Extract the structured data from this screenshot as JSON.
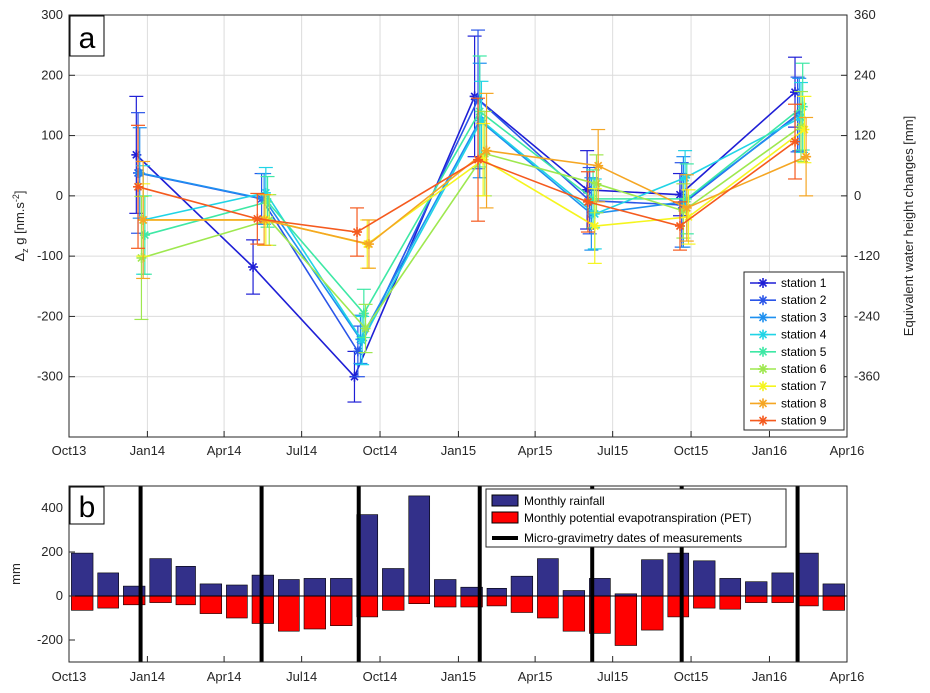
{
  "chart_data": [
    {
      "panel": "a",
      "type": "line",
      "ylabel": "Δz g [nm.s-2]",
      "ylabel_main": "Δ",
      "ylabel_sub": "z",
      "ylabel_rest": " g [nm.s",
      "ylabel_sup": "-2",
      "ylabel_end": "]",
      "y2label": "Equivalent water height  changes [mm]",
      "ylim": [
        -400,
        300
      ],
      "yticks": [
        "300",
        "200",
        "100",
        "0",
        "-100",
        "-200",
        "-300"
      ],
      "y2ticks": [
        "360",
        "240",
        "120",
        "0",
        "-120",
        "-240",
        "-360"
      ],
      "xticks": [
        "Oct13",
        "Jan14",
        "Apr14",
        "Jul14",
        "Oct14",
        "Jan15",
        "Apr15",
        "Jul15",
        "Oct15",
        "Jan16",
        "Apr16"
      ],
      "grid": true,
      "legend_position": "bottom-right",
      "series": [
        {
          "name": "station 1",
          "color": "#1f1fd6",
          "x": [
            "2013-12-19",
            "2014-05-05",
            "2014-09-01",
            "2015-01-20",
            "2015-06-01",
            "2015-09-18",
            "2016-01-31"
          ],
          "values": [
            68,
            -118,
            -300,
            165,
            10,
            2,
            172
          ],
          "err": [
            97,
            45,
            42,
            100,
            65,
            35,
            58
          ]
        },
        {
          "name": "station 2",
          "color": "#2a55e8",
          "x": [
            "2013-12-21",
            "2014-05-15",
            "2014-09-05",
            "2015-01-24",
            "2015-06-04",
            "2015-09-20",
            "2016-02-03"
          ],
          "values": [
            38,
            -5,
            -258,
            160,
            -8,
            -15,
            135
          ],
          "err": [
            100,
            42,
            42,
            115,
            55,
            70,
            62
          ]
        },
        {
          "name": "station 3",
          "color": "#1e90f0",
          "x": [
            "2013-12-23",
            "2014-05-18",
            "2014-09-08",
            "2015-01-26",
            "2015-06-06",
            "2015-09-22",
            "2016-02-05"
          ],
          "values": [
            38,
            -5,
            -238,
            125,
            -30,
            -10,
            135
          ],
          "err": [
            75,
            42,
            40,
            95,
            60,
            75,
            60
          ]
        },
        {
          "name": "station 4",
          "color": "#20d4e6",
          "x": [
            "2013-12-27",
            "2014-05-20",
            "2014-09-10",
            "2015-01-28",
            "2015-06-10",
            "2015-09-24",
            "2016-02-07"
          ],
          "values": [
            -40,
            5,
            -240,
            125,
            -30,
            30,
            130
          ],
          "err": [
            90,
            42,
            40,
            65,
            58,
            45,
            58
          ]
        },
        {
          "name": "station 5",
          "color": "#3ee8a5",
          "x": [
            "2013-12-29",
            "2014-05-22",
            "2014-09-12",
            "2015-01-26",
            "2015-06-08",
            "2015-09-26",
            "2016-02-09"
          ],
          "values": [
            -65,
            -10,
            -195,
            140,
            -5,
            -5,
            148
          ],
          "err": [
            65,
            42,
            40,
            92,
            48,
            58,
            72
          ]
        },
        {
          "name": "station 6",
          "color": "#9ee84f",
          "x": [
            "2013-12-25",
            "2014-05-24",
            "2014-09-14",
            "2015-02-01",
            "2015-06-12",
            "2015-09-22",
            "2016-02-07"
          ],
          "values": [
            -103,
            -40,
            -220,
            70,
            20,
            -25,
            115
          ],
          "err": [
            102,
            42,
            40,
            70,
            48,
            45,
            58
          ]
        },
        {
          "name": "station 7",
          "color": "#f5f51e",
          "x": [
            "2013-12-27",
            "2014-05-20",
            "2014-09-16",
            "2015-01-30",
            "2015-06-10",
            "2015-09-28",
            "2016-02-11"
          ],
          "values": [
            -40,
            -40,
            -80,
            60,
            -50,
            -35,
            110
          ],
          "err": [
            60,
            42,
            40,
            60,
            62,
            45,
            55
          ]
        },
        {
          "name": "station 8",
          "color": "#f5a623",
          "x": [
            "2013-12-27",
            "2014-05-18",
            "2014-09-18",
            "2015-02-03",
            "2015-06-14",
            "2015-09-26",
            "2016-02-13"
          ],
          "values": [
            -40,
            -40,
            -80,
            75,
            50,
            -20,
            65
          ],
          "err": [
            97,
            42,
            40,
            95,
            60,
            55,
            65
          ]
        },
        {
          "name": "station 9",
          "color": "#f55a1e",
          "x": [
            "2013-12-21",
            "2014-05-10",
            "2014-09-04",
            "2015-01-24",
            "2015-06-02",
            "2015-09-18",
            "2016-01-31"
          ],
          "values": [
            15,
            -38,
            -60,
            60,
            -10,
            -50,
            90
          ],
          "err": [
            102,
            42,
            40,
            102,
            50,
            40,
            62
          ]
        }
      ]
    },
    {
      "panel": "b",
      "type": "bar",
      "ylabel": "mm",
      "ylim": [
        -300,
        500
      ],
      "yticks": [
        "400",
        "200",
        "0",
        "-200"
      ],
      "xticks": [
        "Oct13",
        "Jan14",
        "Apr14",
        "Jul14",
        "Oct14",
        "Jan15",
        "Apr15",
        "Jul15",
        "Oct15",
        "Jan16",
        "Apr16"
      ],
      "grid": false,
      "legend_position": "top-right",
      "months": [
        "2013-10",
        "2013-11",
        "2013-12",
        "2014-01",
        "2014-02",
        "2014-03",
        "2014-04",
        "2014-05",
        "2014-06",
        "2014-07",
        "2014-08",
        "2014-09",
        "2014-10",
        "2014-11",
        "2014-12",
        "2015-01",
        "2015-02",
        "2015-03",
        "2015-04",
        "2015-05",
        "2015-06",
        "2015-07",
        "2015-08",
        "2015-09",
        "2015-10",
        "2015-11",
        "2015-12",
        "2016-01",
        "2016-02",
        "2016-03"
      ],
      "series": [
        {
          "name": "Monthly rainfall",
          "color": "#33308a",
          "values": [
            195,
            105,
            45,
            170,
            135,
            55,
            50,
            95,
            75,
            80,
            80,
            370,
            125,
            455,
            75,
            40,
            35,
            90,
            170,
            25,
            80,
            10,
            165,
            195,
            160,
            80,
            65,
            105,
            195,
            55
          ]
        },
        {
          "name": "Monthly potential evapotranspiration (PET)",
          "color": "#ff0000",
          "values": [
            -65,
            -55,
            -40,
            -30,
            -40,
            -80,
            -100,
            -125,
            -160,
            -150,
            -135,
            -95,
            -65,
            -35,
            -50,
            -50,
            -45,
            -75,
            -100,
            -160,
            -170,
            -225,
            -155,
            -95,
            -55,
            -60,
            -30,
            -30,
            -45,
            -65
          ]
        }
      ],
      "measurement_series_name": "Micro-gravimetry dates of measurements",
      "measurement_color": "#000000",
      "measurement_dates": [
        "2013-12-24",
        "2014-05-15",
        "2014-09-06",
        "2015-01-26",
        "2015-06-07",
        "2015-09-20",
        "2016-02-03"
      ]
    }
  ]
}
